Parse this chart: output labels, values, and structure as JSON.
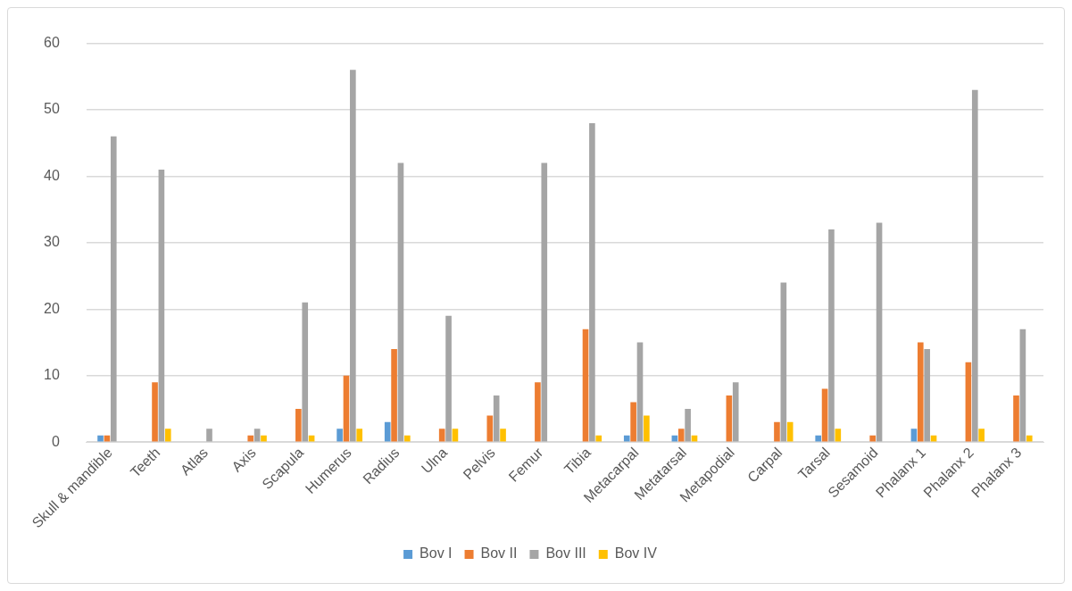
{
  "chart_data": {
    "type": "bar",
    "categories": [
      "Skull & mandible",
      "Teeth",
      "Atlas",
      "Axis",
      "Scapula",
      "Humerus",
      "Radius",
      "Ulna",
      "Pelvis",
      "Femur",
      "Tibia",
      "Metacarpal",
      "Metatarsal",
      "Metapodial",
      "Carpal",
      "Tarsal",
      "Sesamoid",
      "Phalanx 1",
      "Phalanx 2",
      "Phalanx 3"
    ],
    "series": [
      {
        "name": "Bov I",
        "color": "#5b9bd5",
        "values": [
          1,
          0,
          0,
          0,
          0,
          2,
          3,
          0,
          0,
          0,
          0,
          1,
          1,
          0,
          0,
          1,
          0,
          2,
          0,
          0
        ]
      },
      {
        "name": "Bov II",
        "color": "#ed7d31",
        "values": [
          1,
          9,
          0,
          1,
          5,
          10,
          14,
          2,
          4,
          9,
          17,
          6,
          2,
          7,
          3,
          8,
          1,
          15,
          12,
          7
        ]
      },
      {
        "name": "Bov III",
        "color": "#a5a5a5",
        "values": [
          46,
          41,
          2,
          2,
          21,
          56,
          42,
          19,
          7,
          42,
          48,
          15,
          5,
          9,
          24,
          32,
          33,
          14,
          53,
          17
        ]
      },
      {
        "name": "Bov IV",
        "color": "#ffc000",
        "values": [
          0,
          2,
          0,
          1,
          1,
          2,
          1,
          2,
          2,
          0,
          1,
          4,
          1,
          0,
          3,
          2,
          0,
          1,
          2,
          1
        ]
      }
    ],
    "ylim": [
      0,
      60
    ],
    "yticks": [
      0,
      10,
      20,
      30,
      40,
      50,
      60
    ],
    "grid": "y",
    "legend": "bottom"
  }
}
